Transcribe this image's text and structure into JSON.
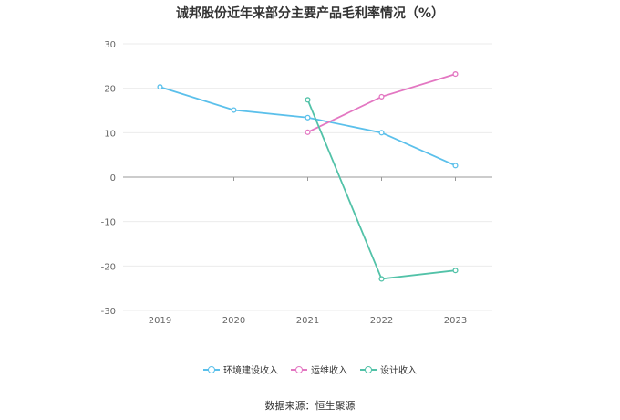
{
  "chart_data": {
    "type": "line",
    "title": "诚邦股份近年来部分主要产品毛利率情况（%）",
    "categories": [
      "2019",
      "2020",
      "2021",
      "2022",
      "2023"
    ],
    "ylim": [
      -30,
      30
    ],
    "yticks": [
      30,
      20,
      10,
      0,
      -10,
      -20,
      -30
    ],
    "grid": true,
    "legend_position": "bottom",
    "series": [
      {
        "name": "环境建设收入",
        "color": "#5bc0eb",
        "values": [
          20.3,
          15.1,
          13.4,
          10.0,
          2.6
        ]
      },
      {
        "name": "运维收入",
        "color": "#e377c2",
        "values": [
          null,
          null,
          10.1,
          18.1,
          23.2
        ]
      },
      {
        "name": "设计收入",
        "color": "#52c2a8",
        "values": [
          null,
          null,
          17.4,
          -22.9,
          -21.0
        ]
      }
    ]
  },
  "source": "数据来源：恒生聚源"
}
